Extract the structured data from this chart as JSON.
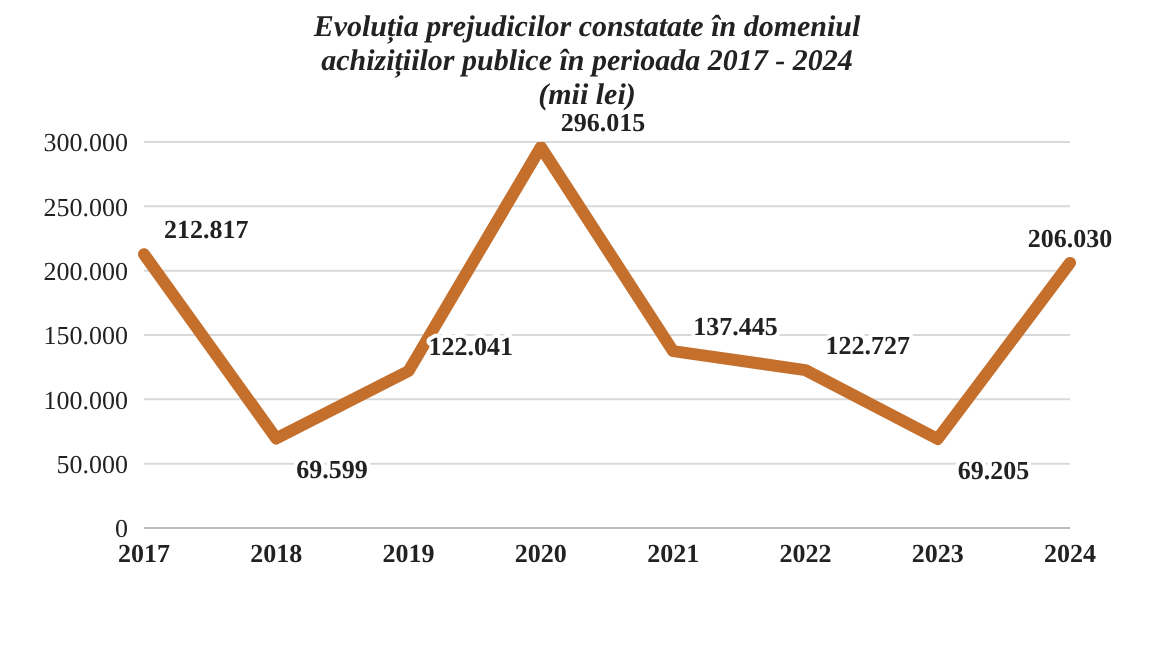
{
  "chart_data": {
    "type": "line",
    "title": "Evoluția prejudicilor constatate în domeniul\nachizițiilor publice în perioada 2017 - 2024",
    "subtitle": "(mii lei)",
    "categories": [
      "2017",
      "2018",
      "2019",
      "2020",
      "2021",
      "2022",
      "2023",
      "2024"
    ],
    "series": [
      {
        "color": "#c46f2c",
        "values": [
          212817,
          69599,
          122041,
          296015,
          137445,
          122727,
          69205,
          206030
        ],
        "value_labels": [
          "212.817",
          "69.599",
          "122.041",
          "296.015",
          "137.445",
          "122.727",
          "69.205",
          "206.030"
        ]
      }
    ],
    "ylim": [
      0,
      300000
    ],
    "yticks": [
      {
        "value": 0,
        "label": "0"
      },
      {
        "value": 50000,
        "label": "50.000"
      },
      {
        "value": 100000,
        "label": "100.000"
      },
      {
        "value": 150000,
        "label": "150.000"
      },
      {
        "value": 200000,
        "label": "200.000"
      },
      {
        "value": 250000,
        "label": "250.000"
      },
      {
        "value": 300000,
        "label": "300.000"
      }
    ],
    "grid": "y",
    "legend": false,
    "marker": "none",
    "line_style": "solid"
  }
}
